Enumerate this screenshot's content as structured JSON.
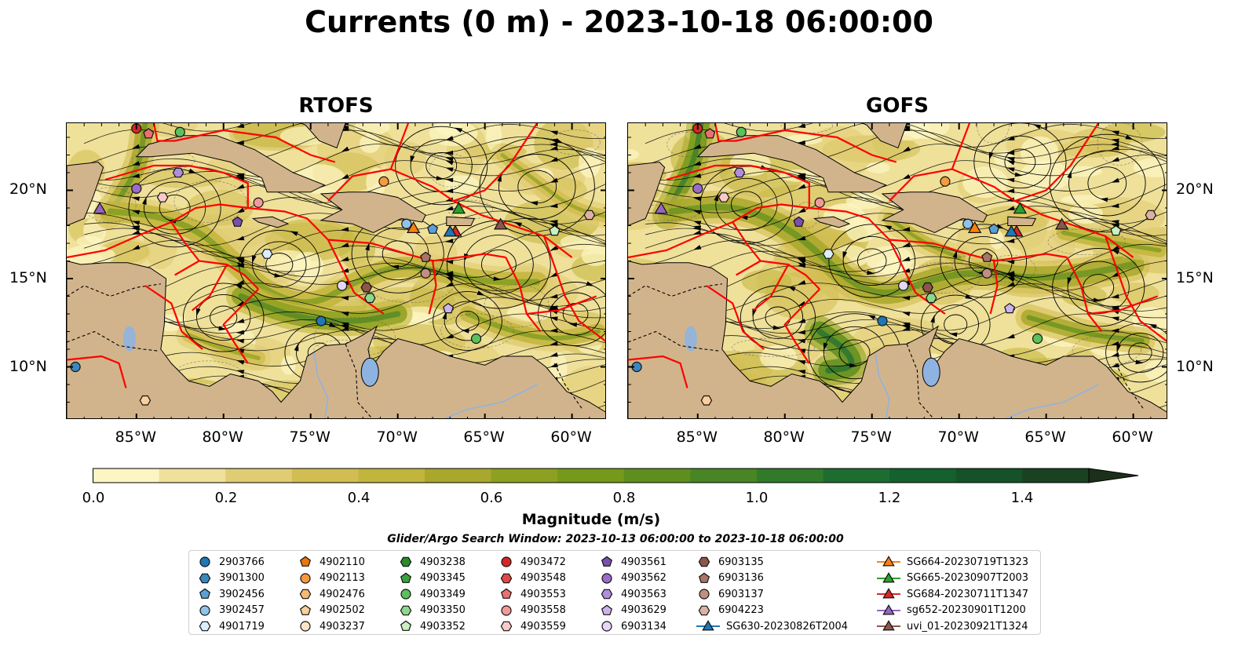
{
  "figure": {
    "title": "Currents (0 m) - 2023-10-18 06:00:00",
    "panels": [
      {
        "title": "RTOFS"
      },
      {
        "title": "GOFS"
      }
    ],
    "lat_labels": [
      "20°N",
      "15°N",
      "10°N"
    ],
    "lon_labels": [
      "85°W",
      "80°W",
      "75°W",
      "70°W",
      "65°W",
      "60°W"
    ],
    "extent": {
      "lon_min": -89,
      "lon_max": -58,
      "lat_min": 7,
      "lat_max": 23.8
    }
  },
  "colorbar": {
    "label": "Magnitude (m/s)",
    "ticks": [
      "0.0",
      "0.2",
      "0.4",
      "0.6",
      "0.8",
      "1.0",
      "1.2",
      "1.4"
    ],
    "min": 0,
    "max": 1.5,
    "step": 0.1,
    "colors": [
      "#fdf6c3",
      "#efe19a",
      "#e0cc72",
      "#d2bd52",
      "#c2b53c",
      "#a9a82c",
      "#8ea020",
      "#75991a",
      "#5f8e1e",
      "#488524",
      "#317a2a",
      "#1d6d30",
      "#14602f",
      "#155228",
      "#1a4222",
      "#1c2f1a"
    ]
  },
  "search_window": "Glider/Argo Search Window: 2023-10-13 06:00:00 to 2023-10-18 06:00:00",
  "legend": {
    "columns": [
      [
        {
          "label": "2903766",
          "marker": "circle",
          "color": "#1f77b4"
        },
        {
          "label": "3901300",
          "marker": "hexagon",
          "color": "#3a88c0"
        },
        {
          "label": "3902456",
          "marker": "pentagon",
          "color": "#5aa0d6"
        },
        {
          "label": "3902457",
          "marker": "circle",
          "color": "#90c3ea"
        },
        {
          "label": "4901719",
          "marker": "hexagon",
          "color": "#dbeefb"
        }
      ],
      [
        {
          "label": "4902110",
          "marker": "pentagon",
          "color": "#e8780e"
        },
        {
          "label": "4902113",
          "marker": "circle",
          "color": "#f59a3e"
        },
        {
          "label": "4902476",
          "marker": "hexagon",
          "color": "#f8b872"
        },
        {
          "label": "4902502",
          "marker": "pentagon",
          "color": "#fbcf9c"
        },
        {
          "label": "4903237",
          "marker": "circle",
          "color": "#fde4c5"
        }
      ],
      [
        {
          "label": "4903238",
          "marker": "hexagon",
          "color": "#2a8a2a"
        },
        {
          "label": "4903345",
          "marker": "pentagon",
          "color": "#3aa23a"
        },
        {
          "label": "4903349",
          "marker": "circle",
          "color": "#5cc05c"
        },
        {
          "label": "4903350",
          "marker": "hexagon",
          "color": "#8ed88e"
        },
        {
          "label": "4903352",
          "marker": "pentagon",
          "color": "#c8f0c0"
        }
      ],
      [
        {
          "label": "4903472",
          "marker": "circle",
          "color": "#d62728"
        },
        {
          "label": "4903548",
          "marker": "hexagon",
          "color": "#e04848"
        },
        {
          "label": "4903553",
          "marker": "pentagon",
          "color": "#ea7070"
        },
        {
          "label": "4903558",
          "marker": "circle",
          "color": "#f29a9a"
        },
        {
          "label": "4903559",
          "marker": "hexagon",
          "color": "#f9caca"
        }
      ],
      [
        {
          "label": "4903561",
          "marker": "pentagon",
          "color": "#7a4fae"
        },
        {
          "label": "4903562",
          "marker": "circle",
          "color": "#9a6cc8"
        },
        {
          "label": "4903563",
          "marker": "hexagon",
          "color": "#b08edc"
        },
        {
          "label": "4903629",
          "marker": "pentagon",
          "color": "#cdb3ec"
        },
        {
          "label": "6903134",
          "marker": "circle",
          "color": "#e6d6f8"
        }
      ],
      [
        {
          "label": "6903135",
          "marker": "hexagon",
          "color": "#8c564b"
        },
        {
          "label": "6903136",
          "marker": "pentagon",
          "color": "#a87466"
        },
        {
          "label": "6903137",
          "marker": "circle",
          "color": "#c08f80"
        },
        {
          "label": "6904223",
          "marker": "hexagon",
          "color": "#ddb2a4"
        },
        {
          "label": "SG630-20230826T2004",
          "marker": "triangle-line",
          "color": "#1f77b4"
        }
      ],
      [
        {
          "label": "SG664-20230719T1323",
          "marker": "triangle-line",
          "color": "#ff7f0e"
        },
        {
          "label": "SG665-20230907T2003",
          "marker": "triangle-line",
          "color": "#2ca02c"
        },
        {
          "label": "SG684-20230711T1347",
          "marker": "triangle-line",
          "color": "#d62728"
        },
        {
          "label": "sg652-20230901T1200",
          "marker": "triangle-line",
          "color": "#9467bd"
        },
        {
          "label": "uvi_01-20230921T1324",
          "marker": "triangle-line",
          "color": "#8c564b"
        }
      ]
    ]
  },
  "floats": [
    {
      "lon": -85.0,
      "lat": 23.5,
      "color": "#d62728",
      "marker": "circle"
    },
    {
      "lon": -84.3,
      "lat": 23.2,
      "color": "#ea7070",
      "marker": "pentagon"
    },
    {
      "lon": -82.5,
      "lat": 23.3,
      "color": "#5cc05c",
      "marker": "circle"
    },
    {
      "lon": -82.6,
      "lat": 21.0,
      "color": "#b08edc",
      "marker": "hexagon"
    },
    {
      "lon": -85.0,
      "lat": 20.1,
      "color": "#9a6cc8",
      "marker": "circle"
    },
    {
      "lon": -83.5,
      "lat": 19.6,
      "color": "#f9caca",
      "marker": "hexagon"
    },
    {
      "lon": -79.2,
      "lat": 18.2,
      "color": "#7a4fae",
      "marker": "pentagon"
    },
    {
      "lon": -78.0,
      "lat": 19.3,
      "color": "#f29a9a",
      "marker": "circle"
    },
    {
      "lon": -77.5,
      "lat": 16.4,
      "color": "#dbeefb",
      "marker": "hexagon"
    },
    {
      "lon": -70.8,
      "lat": 20.5,
      "color": "#f59a3e",
      "marker": "circle"
    },
    {
      "lon": -69.5,
      "lat": 18.1,
      "color": "#90c3ea",
      "marker": "circle"
    },
    {
      "lon": -68.0,
      "lat": 17.8,
      "color": "#5aa0d6",
      "marker": "pentagon"
    },
    {
      "lon": -61.0,
      "lat": 17.7,
      "color": "#c8f0c0",
      "marker": "pentagon"
    },
    {
      "lon": -59.0,
      "lat": 18.6,
      "color": "#ddb2a4",
      "marker": "hexagon"
    },
    {
      "lon": -68.4,
      "lat": 16.2,
      "color": "#a87466",
      "marker": "pentagon"
    },
    {
      "lon": -68.4,
      "lat": 15.3,
      "color": "#c08f80",
      "marker": "circle"
    },
    {
      "lon": -73.2,
      "lat": 14.6,
      "color": "#e6d6f8",
      "marker": "circle"
    },
    {
      "lon": -71.8,
      "lat": 14.5,
      "color": "#8c564b",
      "marker": "hexagon"
    },
    {
      "lon": -71.6,
      "lat": 13.9,
      "color": "#8ed88e",
      "marker": "hexagon"
    },
    {
      "lon": -67.1,
      "lat": 13.3,
      "color": "#cdb3ec",
      "marker": "pentagon"
    },
    {
      "lon": -74.4,
      "lat": 12.6,
      "color": "#1f77b4",
      "marker": "circle"
    },
    {
      "lon": -65.5,
      "lat": 11.6,
      "color": "#5cc05c",
      "marker": "circle"
    },
    {
      "lon": -88.5,
      "lat": 10.0,
      "color": "#3a88c0",
      "marker": "circle"
    },
    {
      "lon": -84.5,
      "lat": 8.1,
      "color": "#fbcf9c",
      "marker": "hexagon"
    }
  ],
  "gliders": [
    {
      "lon": -69.1,
      "lat": 17.8,
      "color": "#ff7f0e"
    },
    {
      "lon": -66.5,
      "lat": 18.9,
      "color": "#2ca02c"
    },
    {
      "lon": -66.7,
      "lat": 17.6,
      "color": "#d62728"
    },
    {
      "lon": -67.0,
      "lat": 17.6,
      "color": "#1f77b4"
    },
    {
      "lon": -87.1,
      "lat": 18.9,
      "color": "#9467bd"
    },
    {
      "lon": -64.1,
      "lat": 18.0,
      "color": "#8c564b"
    }
  ],
  "style": {
    "land": "#d2b48c",
    "lake": "#8fb3e0",
    "boundary": "#ff0000",
    "streamline": "#000000"
  }
}
